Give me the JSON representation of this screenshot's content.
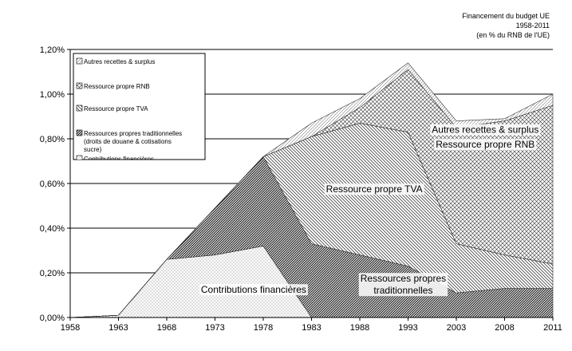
{
  "chart_data": {
    "type": "area",
    "stacked": true,
    "title_lines": [
      "Financement du budget UE",
      "1958-2011",
      "(en % du RNB de l'UE)"
    ],
    "x": [
      "1958",
      "1963",
      "1968",
      "1973",
      "1978",
      "1983",
      "1988",
      "1993",
      "2003",
      "2008",
      "2011"
    ],
    "y_ticks": [
      "0,00%",
      "0,20%",
      "0,40%",
      "0,60%",
      "0,80%",
      "1,00%",
      "1,20%"
    ],
    "ylim": [
      0,
      1.2
    ],
    "unit": "%",
    "series": [
      {
        "key": "contrib",
        "name": "Contributions financières",
        "values": [
          0.0,
          0.01,
          0.26,
          0.28,
          0.32,
          0.0,
          0.0,
          0.0,
          0.0,
          0.0,
          0.0
        ]
      },
      {
        "key": "trad",
        "name": "Ressources propres traditionnelles",
        "values": [
          0.0,
          0.0,
          0.0,
          0.21,
          0.4,
          0.33,
          0.28,
          0.23,
          0.11,
          0.13,
          0.13
        ]
      },
      {
        "key": "tva",
        "name": "Ressource propre TVA",
        "values": [
          0.0,
          0.0,
          0.0,
          0.0,
          0.0,
          0.48,
          0.59,
          0.6,
          0.22,
          0.15,
          0.11
        ]
      },
      {
        "key": "rnb",
        "name": "Ressource propre RNB",
        "values": [
          0.0,
          0.0,
          0.0,
          0.0,
          0.0,
          0.0,
          0.07,
          0.28,
          0.52,
          0.6,
          0.71
        ]
      },
      {
        "key": "autres",
        "name": "Autres recettes & surplus",
        "values": [
          0.0,
          0.0,
          0.0,
          0.0,
          0.0,
          0.06,
          0.04,
          0.03,
          0.03,
          0.01,
          0.05
        ]
      }
    ],
    "legend": [
      {
        "key": "autres",
        "label": "Autres recettes & surplus"
      },
      {
        "key": "rnb",
        "label": "Ressource propre RNB"
      },
      {
        "key": "tva",
        "label": "Ressource propre TVA"
      },
      {
        "key": "trad",
        "label": "Ressources propres traditionnelles",
        "sublabel_lines": [
          "(droits de douane & cotisations",
          "sucre)"
        ]
      },
      {
        "key": "contrib",
        "label": "Contributions financières"
      }
    ],
    "area_labels": [
      {
        "key": "autres",
        "lines": [
          "Autres recettes & surplus"
        ]
      },
      {
        "key": "rnb",
        "lines": [
          "Ressource propre RNB"
        ]
      },
      {
        "key": "tva",
        "lines": [
          "Ressource propre TVA"
        ]
      },
      {
        "key": "trad",
        "lines": [
          "Ressources propres",
          "traditionnelles"
        ]
      },
      {
        "key": "contrib",
        "lines": [
          "Contributions financières"
        ]
      }
    ]
  }
}
